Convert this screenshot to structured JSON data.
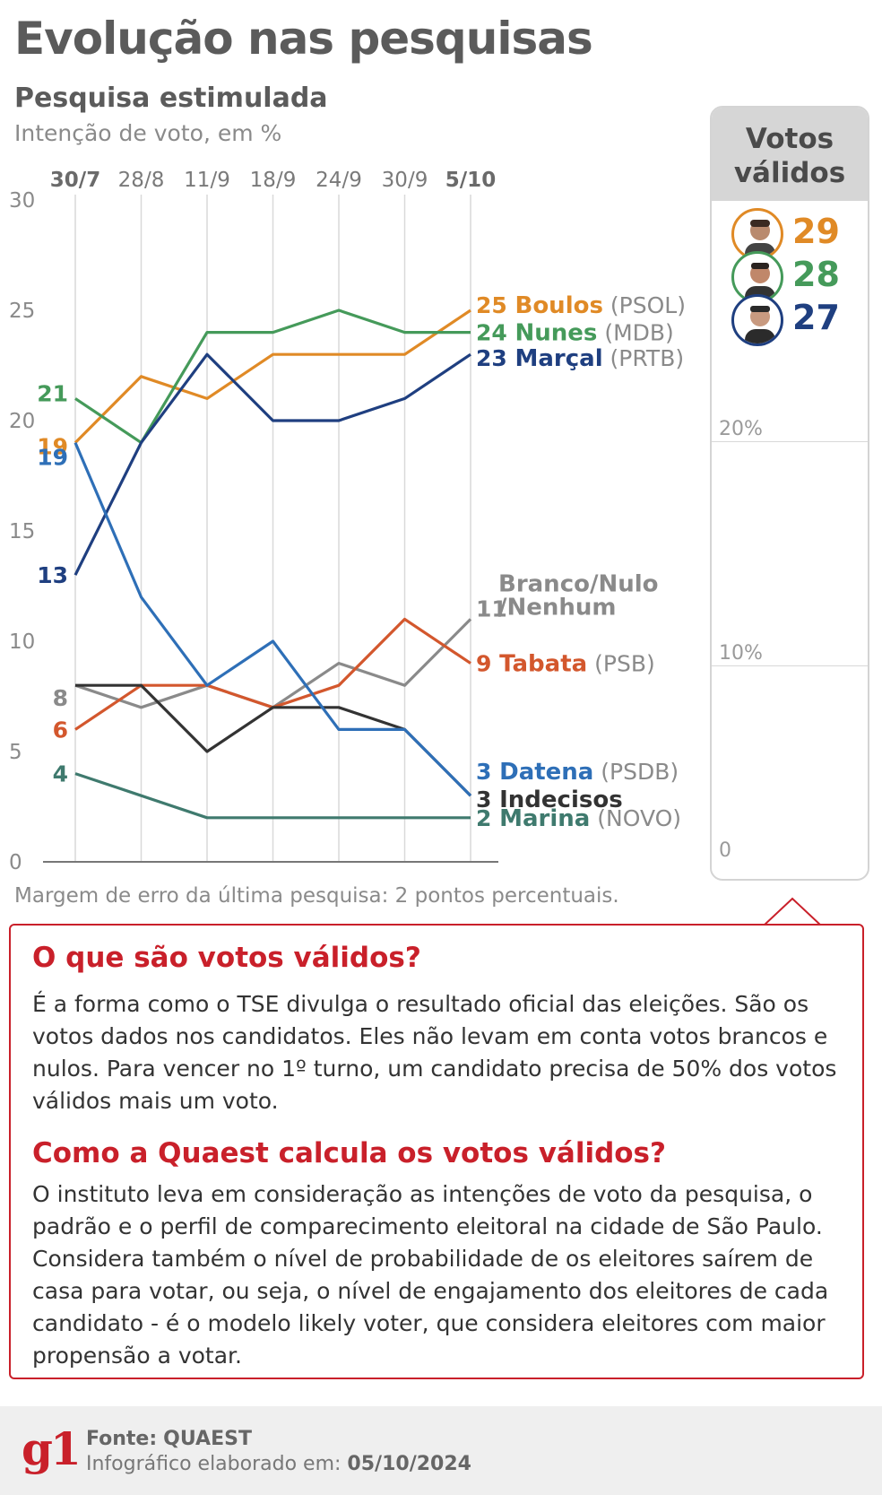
{
  "header": {
    "title": "Evolução nas pesquisas",
    "subtitle": "Pesquisa estimulada",
    "description": "Intenção de voto, em %"
  },
  "colors": {
    "boulos": "#e08a26",
    "nunes": "#459a5a",
    "marcal": "#1f3f80",
    "datena": "#2e6fb7",
    "tabata": "#d3572d",
    "branco": "#8a8a8a",
    "indecisos": "#333333",
    "marina": "#3f7a6e",
    "accent": "#c9202a"
  },
  "chart_data": {
    "type": "line",
    "title": "Evolução nas pesquisas",
    "subtitle": "Pesquisa estimulada",
    "ylabel": "Intenção de voto, em %",
    "ylim": [
      0,
      30
    ],
    "yticks": [
      0,
      5,
      10,
      15,
      20,
      25,
      30
    ],
    "x": [
      "30/7",
      "28/8",
      "11/9",
      "18/9",
      "24/9",
      "30/9",
      "5/10"
    ],
    "x_bold": [
      "30/7",
      "5/10"
    ],
    "series": [
      {
        "key": "boulos",
        "name": "Boulos",
        "party": "(PSOL)",
        "values": [
          19,
          22,
          21,
          23,
          23,
          23,
          25
        ],
        "start_label": "19",
        "end_label": "25"
      },
      {
        "key": "nunes",
        "name": "Nunes",
        "party": "(MDB)",
        "values": [
          21,
          19,
          24,
          24,
          25,
          24,
          24
        ],
        "start_label": "21",
        "end_label": "24"
      },
      {
        "key": "marcal",
        "name": "Marçal",
        "party": "(PRTB)",
        "values": [
          13,
          19,
          23,
          20,
          20,
          21,
          23
        ],
        "start_label": "13",
        "end_label": "23"
      },
      {
        "key": "branco",
        "name_lines": [
          "Branco/Nulo",
          "/Nenhum"
        ],
        "party": "",
        "values": [
          8,
          7,
          8,
          7,
          9,
          8,
          11
        ],
        "start_label": "8",
        "end_label": "11"
      },
      {
        "key": "tabata",
        "name": "Tabata",
        "party": "(PSB)",
        "values": [
          6,
          8,
          8,
          7,
          8,
          11,
          9
        ],
        "start_label": "6",
        "end_label": "9"
      },
      {
        "key": "indecisos",
        "name": "Indecisos",
        "party": "",
        "values": [
          8,
          8,
          5,
          7,
          7,
          6,
          3
        ],
        "start_label": "",
        "end_label": "3"
      },
      {
        "key": "datena",
        "name": "Datena",
        "party": "(PSDB)",
        "values": [
          19,
          12,
          8,
          10,
          6,
          6,
          3
        ],
        "start_label": "19",
        "end_label": "3"
      },
      {
        "key": "marina",
        "name": "Marina",
        "party": "(NOVO)",
        "values": [
          4,
          3,
          2,
          2,
          2,
          2,
          2
        ],
        "start_label": "4",
        "end_label": "2"
      }
    ]
  },
  "margin_note": "Margem de erro da última pesquisa: 2 pontos percentuais.",
  "valid_votes": {
    "title_line1": "Votos",
    "title_line2": "válidos",
    "entries": [
      {
        "key": "boulos",
        "value": "29",
        "avatar": "candidate-boulos-photo"
      },
      {
        "key": "nunes",
        "value": "28",
        "avatar": "candidate-nunes-photo"
      },
      {
        "key": "marcal",
        "value": "27",
        "avatar": "candidate-marcal-photo"
      }
    ],
    "ticks": [
      "20%",
      "10%",
      "0"
    ]
  },
  "info": {
    "heading1": "O que são votos válidos?",
    "text1": "É a forma como o TSE divulga o resultado oficial das eleições. São os votos dados nos candidatos. Eles não levam em conta votos brancos e nulos. Para vencer no 1º turno, um candidato precisa de 50% dos votos válidos mais um voto.",
    "heading2": "Como a Quaest calcula os votos válidos?",
    "text2": "O instituto leva em consideração as intenções de voto da pesquisa, o padrão e o perfil de comparecimento eleitoral na cidade de São Paulo. Considera também o nível de probabilidade de os eleitores saírem de casa para votar, ou seja, o nível de engajamento dos eleitores de cada candidato - é o modelo likely voter, que considera eleitores com maior propensão a votar."
  },
  "footer": {
    "logo": "g1",
    "source_label": "Fonte:",
    "source_value": "QUAEST",
    "date_label": "Infográfico elaborado em:",
    "date_value": "05/10/2024"
  }
}
